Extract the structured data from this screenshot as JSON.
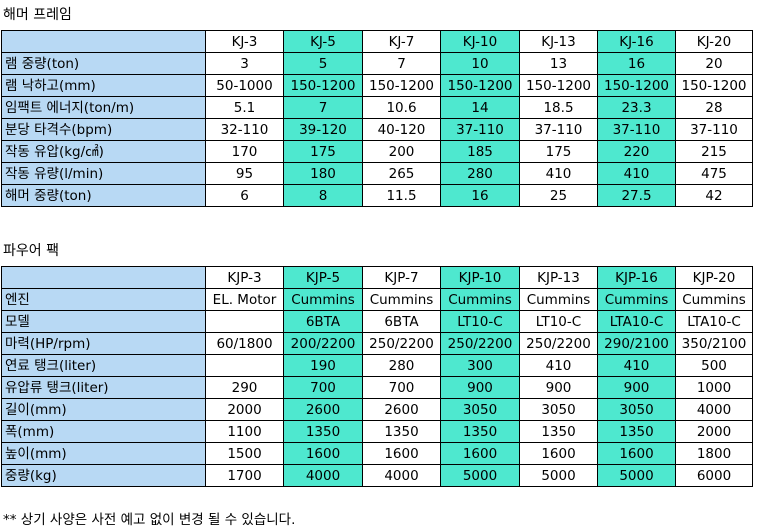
{
  "hammer": {
    "title": "해머 프레임",
    "header": [
      "KJ-3",
      "KJ-5",
      "KJ-7",
      "KJ-10",
      "KJ-13",
      "KJ-16",
      "KJ-20"
    ],
    "rows": [
      {
        "label": "램 중량(ton)",
        "values": [
          "3",
          "5",
          "7",
          "10",
          "13",
          "16",
          "20"
        ]
      },
      {
        "label": "램 낙하고(mm)",
        "values": [
          "50-1000",
          "150-1200",
          "150-1200",
          "150-1200",
          "150-1200",
          "150-1200",
          "150-1200"
        ]
      },
      {
        "label": "임팩트 에너지(ton/m)",
        "values": [
          "5.1",
          "7",
          "10.6",
          "14",
          "18.5",
          "23.3",
          "28"
        ]
      },
      {
        "label": "분당 타격수(bpm)",
        "values": [
          "32-110",
          "39-120",
          "40-120",
          "37-110",
          "37-110",
          "37-110",
          "37-110"
        ]
      },
      {
        "label": "작동 유압(kg/㎠)",
        "values": [
          "170",
          "175",
          "200",
          "185",
          "175",
          "220",
          "215"
        ]
      },
      {
        "label": "작동 유량(l/min)",
        "values": [
          "95",
          "180",
          "265",
          "280",
          "410",
          "410",
          "475"
        ]
      },
      {
        "label": "해머 중량(ton)",
        "values": [
          "6",
          "8",
          "11.5",
          "16",
          "25",
          "27.5",
          "42"
        ]
      }
    ]
  },
  "power_pack": {
    "title": "파우어 팩",
    "header": [
      "KJP-3",
      "KJP-5",
      "KJP-7",
      "KJP-10",
      "KJP-13",
      "KJP-16",
      "KJP-20"
    ],
    "rows": [
      {
        "label": "엔진",
        "values": [
          "EL. Motor",
          "Cummins",
          "Cummins",
          "Cummins",
          "Cummins",
          "Cummins",
          "Cummins"
        ]
      },
      {
        "label": "모델",
        "values": [
          "",
          "6BTA",
          "6BTA",
          "LT10-C",
          "LT10-C",
          "LTA10-C",
          "LTA10-C"
        ]
      },
      {
        "label": "마력(HP/rpm)",
        "values": [
          "60/1800",
          "200/2200",
          "250/2200",
          "250/2200",
          "250/2200",
          "290/2100",
          "350/2100"
        ]
      },
      {
        "label": "연료 탱크(liter)",
        "values": [
          "",
          "190",
          "280",
          "300",
          "410",
          "410",
          "500"
        ]
      },
      {
        "label": "유압류 탱크(liter)",
        "values": [
          "290",
          "700",
          "700",
          "900",
          "900",
          "900",
          "1000"
        ]
      },
      {
        "label": "길이(mm)",
        "values": [
          "2000",
          "2600",
          "2600",
          "3050",
          "3050",
          "3050",
          "4000"
        ]
      },
      {
        "label": "폭(mm)",
        "values": [
          "1100",
          "1350",
          "1350",
          "1350",
          "1350",
          "1350",
          "2000"
        ]
      },
      {
        "label": "높이(mm)",
        "values": [
          "1500",
          "1600",
          "1600",
          "1600",
          "1600",
          "1600",
          "1800"
        ]
      },
      {
        "label": "중량(kg)",
        "values": [
          "1700",
          "4000",
          "4000",
          "5000",
          "5000",
          "5000",
          "6000"
        ]
      }
    ]
  },
  "highlight_columns": [
    1,
    3,
    5
  ],
  "colors": {
    "label_bg": "#b8d9f4",
    "highlight_bg": "#4ee8cf",
    "border": "#000000"
  },
  "note": "** 상기 사양은 사전 예고 없이 변경 될 수 있습니다."
}
